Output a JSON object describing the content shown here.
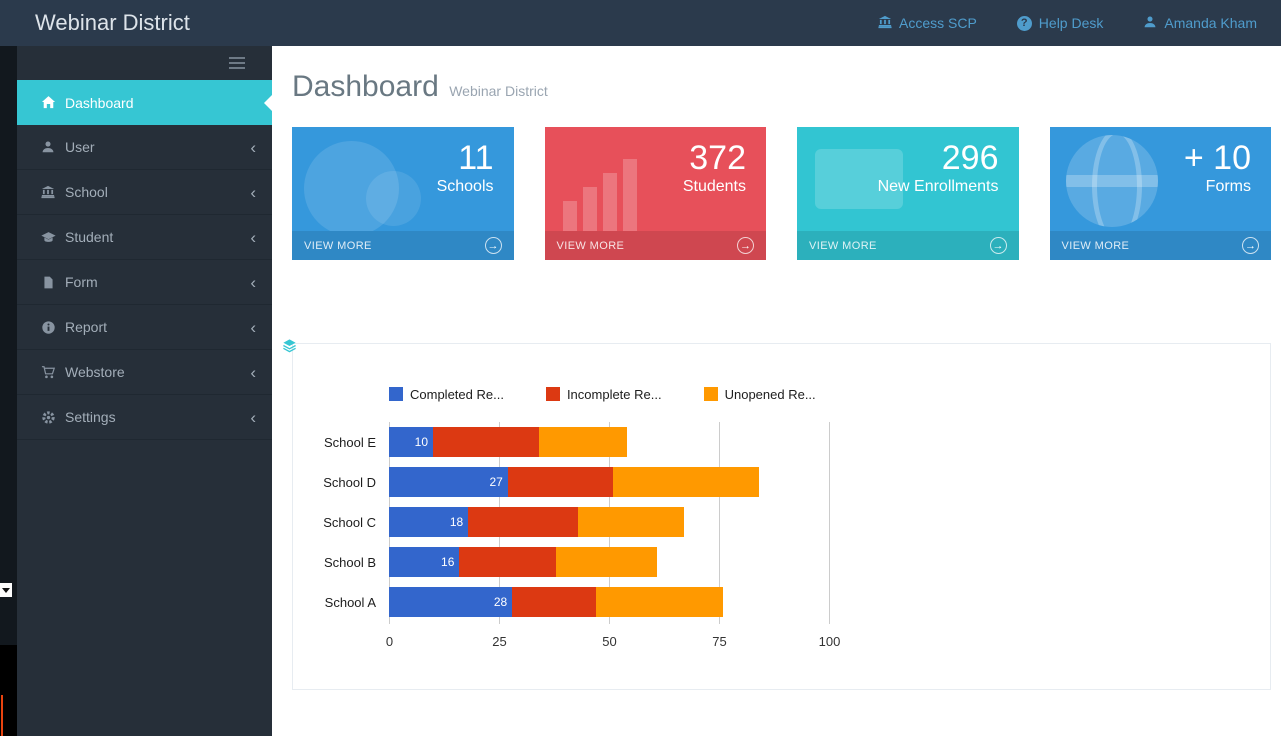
{
  "header": {
    "brand": "Webinar District",
    "nav": [
      {
        "label": "Access SCP",
        "icon": "bank-icon"
      },
      {
        "label": "Help Desk",
        "icon": "help-icon"
      },
      {
        "label": "Amanda Kham",
        "icon": "user-icon"
      }
    ],
    "link_color": "#4f9ccc",
    "background": "#2b3a4c"
  },
  "sidebar": {
    "items": [
      {
        "label": "Dashboard",
        "icon": "home-icon",
        "active": true
      },
      {
        "label": "User",
        "icon": "user-icon",
        "expandable": true
      },
      {
        "label": "School",
        "icon": "school-icon",
        "expandable": true
      },
      {
        "label": "Student",
        "icon": "graduation-cap-icon",
        "expandable": true
      },
      {
        "label": "Form",
        "icon": "document-icon",
        "expandable": true
      },
      {
        "label": "Report",
        "icon": "info-icon",
        "expandable": true
      },
      {
        "label": "Webstore",
        "icon": "cart-icon",
        "expandable": true
      },
      {
        "label": "Settings",
        "icon": "gear-icon",
        "expandable": true
      }
    ],
    "active_color": "#36c6d3",
    "background": "#262f39"
  },
  "page": {
    "title": "Dashboard",
    "subtitle": "Webinar District"
  },
  "cards": [
    {
      "value": "11",
      "label": "Schools",
      "color": "#3598dc",
      "footer_label": "VIEW MORE"
    },
    {
      "value": "372",
      "label": "Students",
      "color": "#e7505a",
      "footer_label": "VIEW MORE"
    },
    {
      "value": "296",
      "label": "New Enrollments",
      "color": "#32c5d2",
      "footer_label": "VIEW MORE"
    },
    {
      "value": "+ 10",
      "label": "Forms",
      "color": "#3598dc",
      "footer_label": "VIEW MORE"
    }
  ],
  "chart_data": {
    "type": "bar",
    "orientation": "horizontal",
    "stacked": true,
    "categories": [
      "School E",
      "School D",
      "School C",
      "School B",
      "School A"
    ],
    "series": [
      {
        "name": "Completed Re...",
        "color": "#3366cc",
        "values": [
          10,
          27,
          18,
          16,
          28
        ]
      },
      {
        "name": "Incomplete Re...",
        "color": "#dc3912",
        "values": [
          24,
          24,
          25,
          22,
          19
        ]
      },
      {
        "name": "Unopened Re...",
        "color": "#ff9900",
        "values": [
          20,
          33,
          24,
          23,
          29
        ]
      }
    ],
    "bar_value_labels_series": 0,
    "xticks": [
      "0",
      "25",
      "50",
      "75",
      "100"
    ],
    "xlim": [
      0,
      100
    ],
    "legend_position": "top",
    "grid": true
  }
}
